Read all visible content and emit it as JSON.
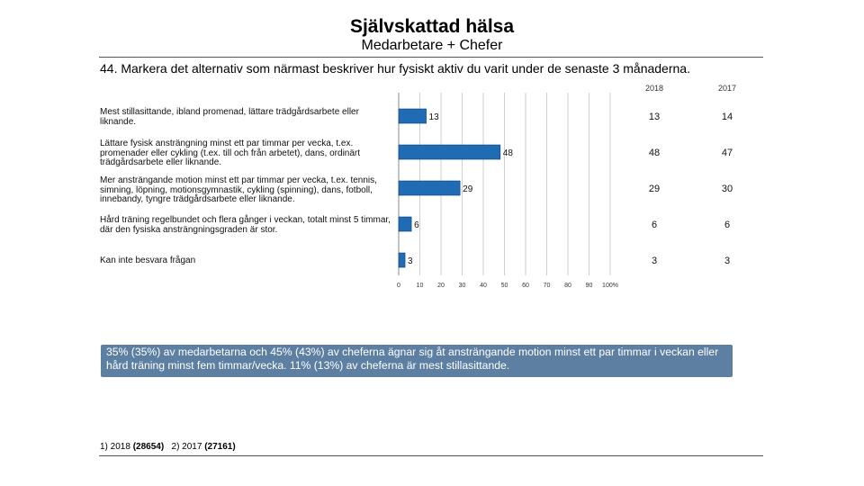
{
  "header": {
    "title": "Självskattad hälsa",
    "subtitle": "Medarbetare + Chefer"
  },
  "question": "44. Markera det alternativ som närmast beskriver hur fysiskt aktiv du varit under de senaste 3 månaderna.",
  "columns": [
    "2018",
    "2017"
  ],
  "rows": [
    {
      "label": "Mest stillasittande, ibland promenad, lättare trädgårdsarbete eller liknande.",
      "v2018": "13",
      "v2017": "14"
    },
    {
      "label": "Lättare fysisk ansträngning minst ett par timmar per vecka, t.ex. promenader eller cykling (t.ex. till och från arbetet), dans, ordinärt trädgårdsarbete eller liknande.",
      "v2018": "48",
      "v2017": "47"
    },
    {
      "label": "Mer ansträngande motion minst ett par timmar per vecka, t.ex. tennis, simning, löpning, motionsgymnastik, cykling (spinning), dans, fotboll, innebandy, tyngre trädgårdsarbete eller liknande.",
      "v2018": "29",
      "v2017": "30"
    },
    {
      "label": "Hård träning regelbundet och flera gånger i veckan, totalt minst 5 timmar, där den fysiska ansträngningsgraden är stor.",
      "v2018": "6",
      "v2017": "6"
    },
    {
      "label": "Kan inte besvara frågan",
      "v2018": "3",
      "v2017": "3"
    }
  ],
  "chart_data": {
    "type": "bar",
    "orientation": "horizontal",
    "categories": [
      "Mest stillasittande, ibland promenad, lättare trädgårdsarbete eller liknande.",
      "Lättare fysisk ansträngning minst ett par timmar per vecka, t.ex. promenader eller cykling (t.ex. till och från arbetet), dans, ordinärt trädgårdsarbete eller liknande.",
      "Mer ansträngande motion minst ett par timmar per vecka, t.ex. tennis, simning, löpning, motionsgymnastik, cykling (spinning), dans, fotboll, innebandy, tyngre trädgårdsarbete eller liknande.",
      "Hård träning regelbundet och flera gånger i veckan, totalt minst 5 timmar, där den fysiska ansträngningsgraden är stor.",
      "Kan inte besvara frågan"
    ],
    "values": [
      13,
      48,
      29,
      6,
      3
    ],
    "xlim": [
      0,
      100
    ],
    "xticks": [
      "0",
      "10",
      "20",
      "30",
      "40",
      "50",
      "60",
      "70",
      "80",
      "90",
      "100%"
    ],
    "grid": true,
    "bar_color": "#1f6bb4"
  },
  "callout": "35% (35%) av medarbetarna och 45% (43%) av cheferna ägnar sig åt ansträngande motion minst ett par timmar i veckan eller hård träning minst fem timmar/vecka. 11% (13%) av cheferna är mest stillasittande.",
  "footer": {
    "part1": "1) 2018 ",
    "n1": "(28654)",
    "part2": "   2) 2017 ",
    "n2": "(27161)"
  }
}
